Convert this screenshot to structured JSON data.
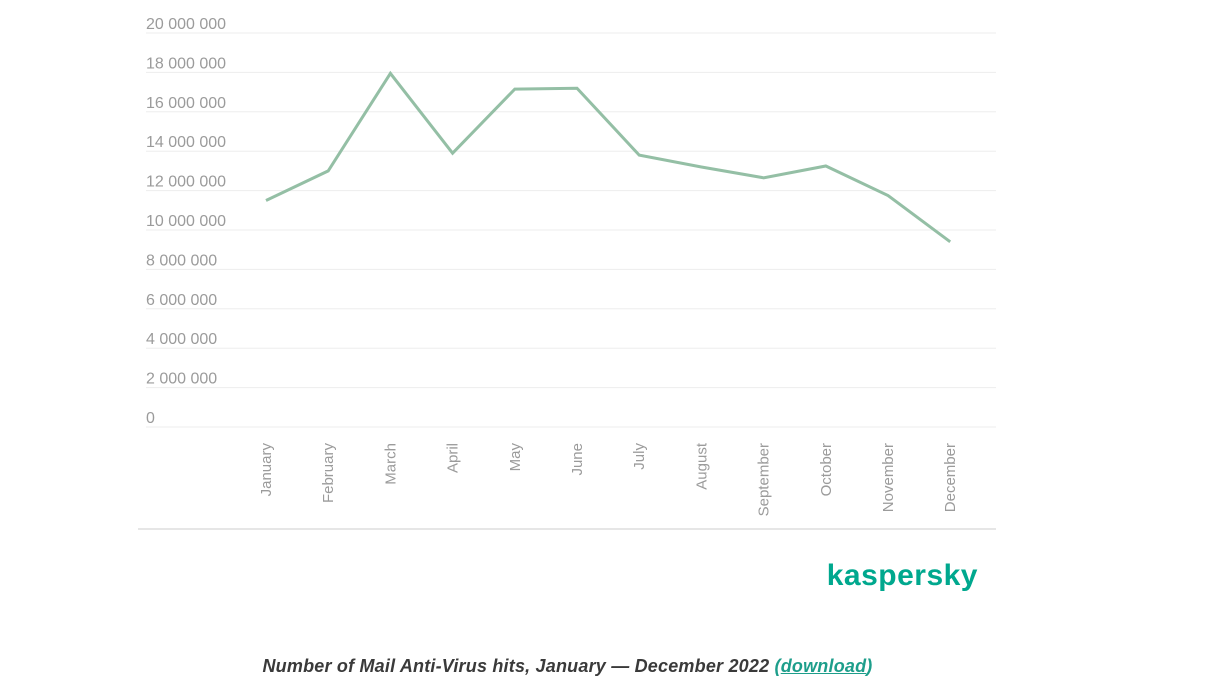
{
  "chart_data": {
    "type": "line",
    "categories": [
      "January",
      "February",
      "March",
      "April",
      "May",
      "June",
      "July",
      "August",
      "September",
      "October",
      "November",
      "December"
    ],
    "series": [
      {
        "name": "Mail Anti-Virus hits",
        "values": [
          11500000,
          13000000,
          17950000,
          13900000,
          17150000,
          17200000,
          13800000,
          13200000,
          12650000,
          13250000,
          11750000,
          9400000
        ]
      }
    ],
    "title": "Number of Mail Anti-Virus hits, January — December 2022",
    "xlabel": "",
    "ylabel": "",
    "ylim": [
      0,
      20000000
    ],
    "ytick_step": 2000000,
    "ytick_labels": [
      "0",
      "2 000 000",
      "4 000 000",
      "6 000 000",
      "8 000 000",
      "10 000 000",
      "12 000 000",
      "14 000 000",
      "16 000 000",
      "18 000 000",
      "20 000 000"
    ],
    "grid": true,
    "legend": "none",
    "line_color": "#94bfa5",
    "grid_color": "#ededed",
    "label_color": "#9b9b9b",
    "axis_border_color": "#cccccc"
  },
  "branding": {
    "logo_text": "kaspersky",
    "logo_color": "#00a88e"
  },
  "caption": {
    "prefix": "Number of Mail Anti-Virus hits, January — December 2022 ",
    "open_paren": "(",
    "link_text": "download",
    "close_paren": ")",
    "text_color": "#3a3a3a",
    "link_color": "#1d9e8b"
  }
}
